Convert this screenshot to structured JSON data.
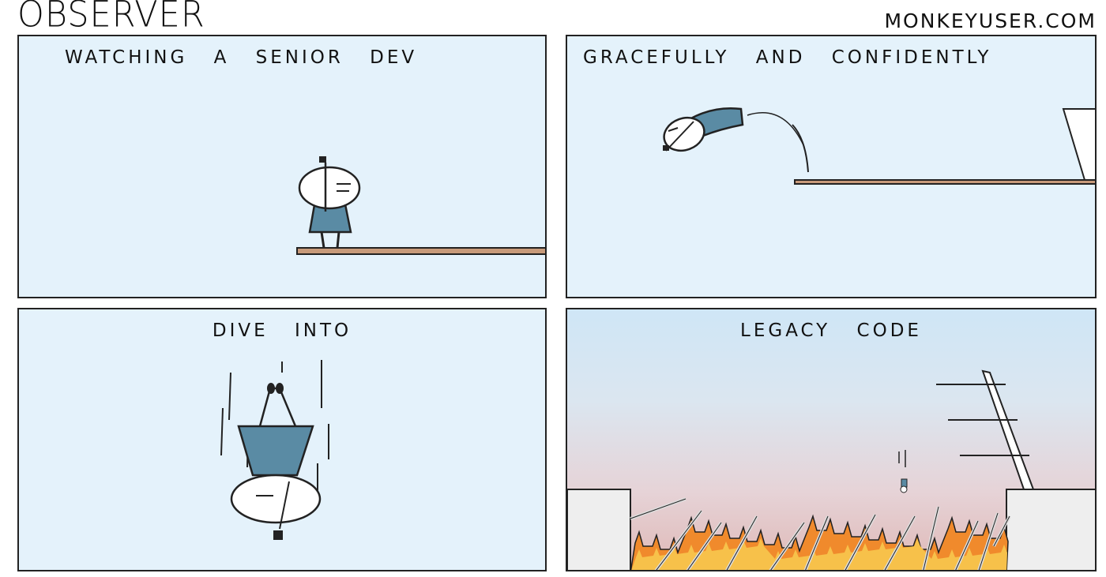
{
  "comic": {
    "title": "OBSERVER",
    "site": "MONKEYUSER.COM"
  },
  "panels": [
    {
      "caption": "WATCHING A SENIOR DEV"
    },
    {
      "caption": "GRACEFULLY AND CONFIDENTLY"
    },
    {
      "caption": "DIVE INTO"
    },
    {
      "caption": "LEGACY CODE"
    }
  ],
  "colors": {
    "panel_bg": "#e4f2fb",
    "shirt": "#5a8ba4",
    "board": "#c79a7a",
    "fire": "#f08a2c",
    "fire_light": "#f7c14a"
  }
}
